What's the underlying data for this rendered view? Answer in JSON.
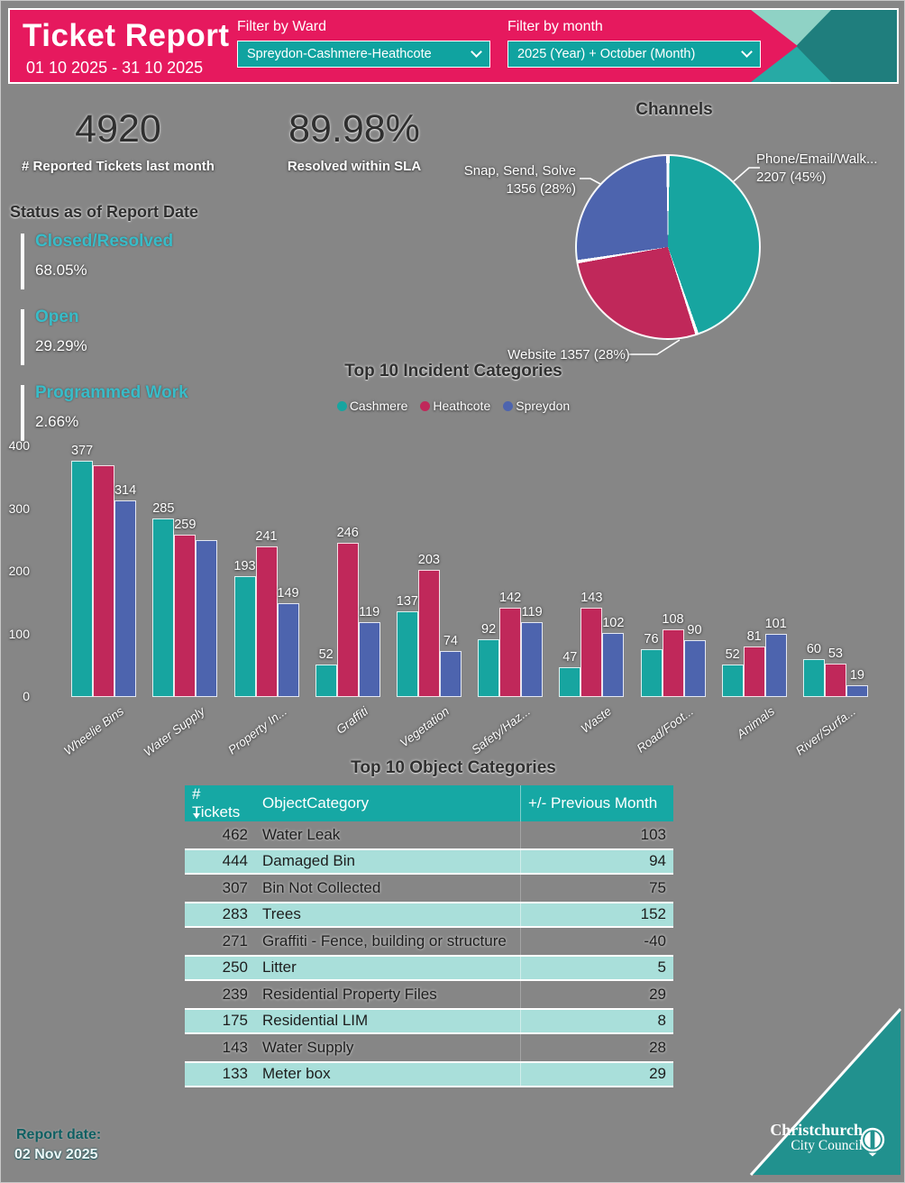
{
  "header": {
    "title": "Ticket Report",
    "date_range": "01 10 2025 - 31 10 2025",
    "filters": [
      {
        "label": "Filter by Ward",
        "value": "Spreydon-Cashmere-Heathcote"
      },
      {
        "label": "Filter by month",
        "value": "2025 (Year) + October (Month)"
      }
    ]
  },
  "kpis": [
    {
      "value": "4920",
      "label": "# Reported Tickets last month"
    },
    {
      "value": "89.98%",
      "label": "Resolved within SLA"
    }
  ],
  "status": {
    "title": "Status as of Report Date",
    "items": [
      {
        "label": "Closed/Resolved",
        "value": "68.05%"
      },
      {
        "label": "Open",
        "value": "29.29%"
      },
      {
        "label": "Programmed Work",
        "value": "2.66%"
      }
    ]
  },
  "chart_data": [
    {
      "type": "pie",
      "title": "Channels",
      "slices": [
        {
          "label": "Phone/Email/Walk...",
          "value": 2207,
          "pct": 45,
          "color_key": "teal",
          "label_lines": [
            "Phone/Email/Walk...",
            "2207 (45%)"
          ]
        },
        {
          "label": "Website",
          "value": 1357,
          "pct": 28,
          "color_key": "crimson",
          "label_lines": [
            "Website 1357 (28%)"
          ]
        },
        {
          "label": "Snap, Send, Solve",
          "value": 1356,
          "pct": 28,
          "color_key": "blue",
          "label_lines": [
            "Snap, Send, Solve",
            "1356 (28%)"
          ]
        }
      ],
      "start": "12 o'clock, clockwise"
    },
    {
      "type": "bar",
      "title": "Top 10 Incident Categories",
      "categories": [
        "Wheelie Bins",
        "Water Supply",
        "Property In...",
        "Graffiti",
        "Vegetation",
        "Safety/Haz...",
        "Waste",
        "Road/Foot...",
        "Animals",
        "River/Surfa..."
      ],
      "series": [
        {
          "name": "Cashmere",
          "color_key": "teal",
          "values": [
            377,
            285,
            193,
            52,
            137,
            92,
            47,
            76,
            52,
            60
          ],
          "labels": [
            "377",
            "285",
            "193",
            "52",
            "137",
            "92",
            "47",
            "76",
            "52",
            "60"
          ]
        },
        {
          "name": "Heathcote",
          "color_key": "crimson",
          "values": [
            370,
            259,
            241,
            246,
            203,
            142,
            143,
            108,
            81,
            53
          ],
          "labels": [
            "",
            "259",
            "241",
            "246",
            "203",
            "142",
            "143",
            "108",
            "81",
            "53"
          ]
        },
        {
          "name": "Spreydon",
          "color_key": "blue",
          "values": [
            314,
            250,
            149,
            119,
            74,
            119,
            102,
            90,
            101,
            19
          ],
          "labels": [
            "314",
            "",
            "149",
            "119",
            "74",
            "119",
            "102",
            "90",
            "101",
            "19"
          ]
        }
      ],
      "ylim": [
        0,
        400
      ],
      "yticks": [
        0,
        100,
        200,
        300,
        400
      ],
      "grid": false,
      "legend_position": "top"
    },
    {
      "type": "table",
      "title": "Top 10 Object Categories",
      "columns": [
        "# Tickets",
        "ObjectCategory",
        "+/- Previous Month"
      ],
      "rows": [
        [
          "462",
          "Water Leak",
          "103"
        ],
        [
          "444",
          "Damaged Bin",
          "94"
        ],
        [
          "307",
          "Bin Not Collected",
          "75"
        ],
        [
          "283",
          "Trees",
          "152"
        ],
        [
          "271",
          "Graffiti - Fence, building or structure",
          "-40"
        ],
        [
          "250",
          "Litter",
          "5"
        ],
        [
          "239",
          "Residential Property Files",
          "29"
        ],
        [
          "175",
          "Residential LIM",
          "8"
        ],
        [
          "143",
          "Water Supply",
          "28"
        ],
        [
          "133",
          "Meter box",
          "29"
        ]
      ]
    }
  ],
  "footer": {
    "label": "Report date:",
    "date": "02 Nov 2025"
  },
  "logo": {
    "line1": "Christchurch",
    "line2": "City Council"
  },
  "colors": {
    "pink": "#E6195E",
    "teal": "#17A5A0",
    "crimson": "#C0285A",
    "blue": "#4D64AE",
    "mint": "#8FD2C5",
    "midteal": "#27AAA5",
    "darkteal": "#1F7E7D",
    "dropteal": "#10A3A0",
    "statuscyan": "#38BCC8",
    "tableheader": "#16A8A4",
    "rowalt": "#A9DFDA",
    "logoteal": "#21918E"
  }
}
